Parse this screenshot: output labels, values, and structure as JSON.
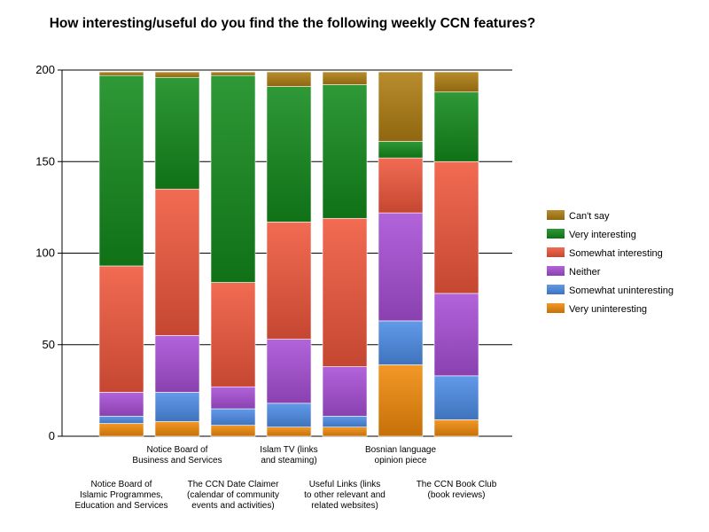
{
  "chart_data": {
    "type": "bar",
    "stacked": true,
    "title": "How interesting/useful do you find the the following weekly CCN features?",
    "xlabel": "",
    "ylabel": "",
    "ylim": [
      0,
      200
    ],
    "yticks": [
      0,
      50,
      100,
      150,
      200
    ],
    "grid": true,
    "legend_position": "right",
    "categories": [
      [
        "Notice Board of",
        "Islamic Programmes,",
        "Education and Services"
      ],
      [
        "Notice Board of",
        "Business and Services"
      ],
      [
        "The CCN Date Claimer",
        "(calendar of community",
        "events and activities)"
      ],
      [
        "Islam TV (links",
        "and steaming)"
      ],
      [
        "Useful Links (links",
        "to other relevant and",
        "related websites)"
      ],
      [
        "Bosnian language",
        "opinion piece"
      ],
      [
        "The CCN Book Club",
        "(book reviews)"
      ]
    ],
    "series": [
      {
        "name": "Very uninteresting",
        "color": "#f08a0a",
        "values": [
          7,
          8,
          6,
          5,
          5,
          39,
          9
        ]
      },
      {
        "name": "Somewhat uninteresting",
        "color": "#4d8ce6",
        "values": [
          4,
          16,
          9,
          13,
          6,
          24,
          24
        ]
      },
      {
        "name": "Neither",
        "color": "#a84fd6",
        "values": [
          13,
          31,
          12,
          35,
          27,
          59,
          45
        ]
      },
      {
        "name": "Somewhat interesting",
        "color": "#f0573c",
        "values": [
          69,
          80,
          57,
          64,
          81,
          30,
          72
        ]
      },
      {
        "name": "Very interesting",
        "color": "#138a1c",
        "values": [
          104,
          61,
          113,
          74,
          73,
          9,
          38
        ]
      },
      {
        "name": "Can't say",
        "color": "#b07e12",
        "values": [
          2,
          3,
          2,
          8,
          7,
          38,
          11
        ]
      }
    ]
  }
}
